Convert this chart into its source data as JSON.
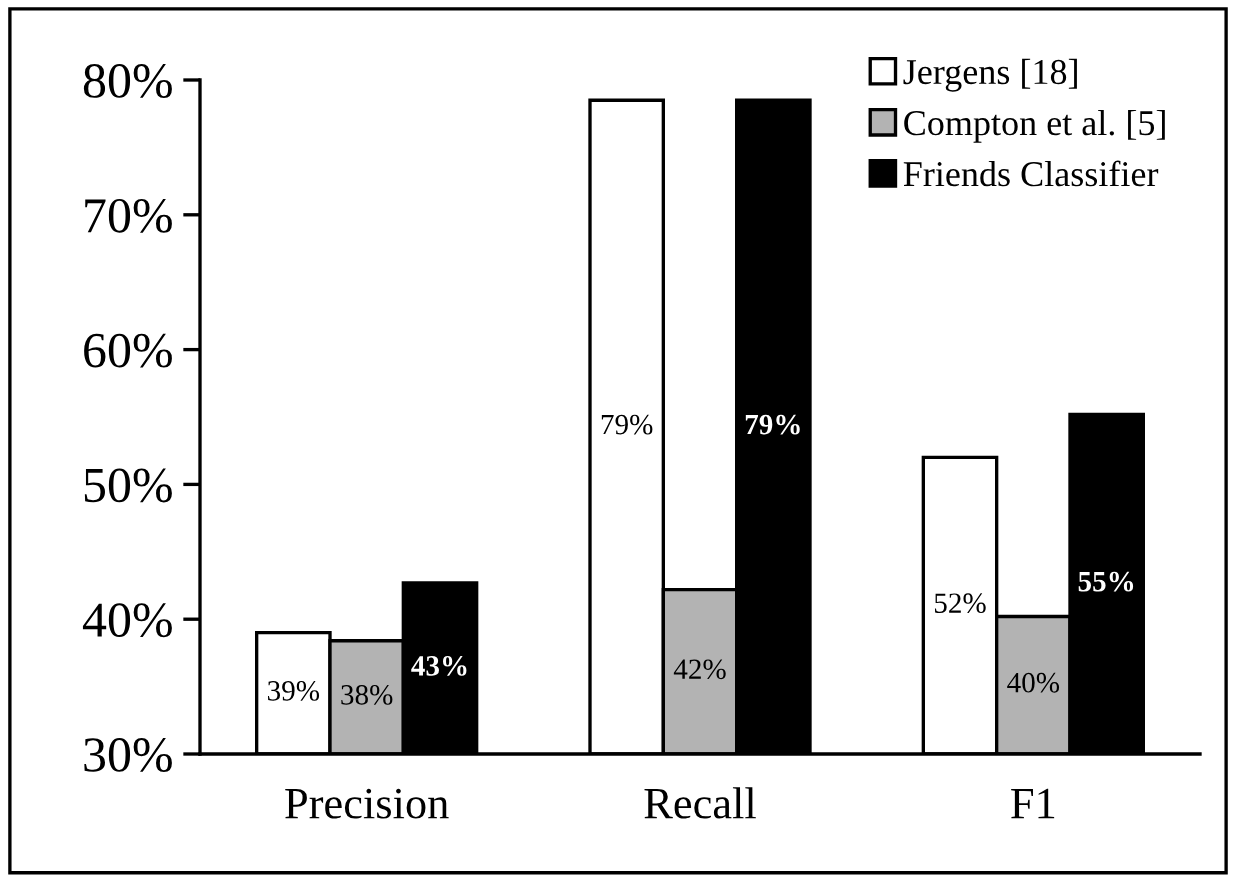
{
  "chart_data": {
    "type": "bar",
    "categories": [
      "Precision",
      "Recall",
      "F1"
    ],
    "series": [
      {
        "name": "Jergens [18]",
        "color": "#ffffff",
        "values": [
          39.0,
          78.5,
          52.0
        ],
        "value_labels": [
          "39%",
          "79%",
          "52%"
        ]
      },
      {
        "name": "Compton et al. [5]",
        "color": "#b3b3b3",
        "values": [
          38.4,
          42.2,
          40.2
        ],
        "value_labels": [
          "38%",
          "42%",
          "40%"
        ]
      },
      {
        "name": "Friends Classifier",
        "color": "#000000",
        "values": [
          42.7,
          78.5,
          55.2
        ],
        "value_labels": [
          "43%",
          "79%",
          "55%"
        ]
      }
    ],
    "ylim": [
      30,
      80
    ],
    "yticks": [
      {
        "value": 30,
        "label": "30%"
      },
      {
        "value": 40,
        "label": "40%"
      },
      {
        "value": 50,
        "label": "50%"
      },
      {
        "value": 60,
        "label": "60%"
      },
      {
        "value": 70,
        "label": "70%"
      },
      {
        "value": 80,
        "label": "80%"
      }
    ],
    "grid": false,
    "legend": "top right"
  }
}
